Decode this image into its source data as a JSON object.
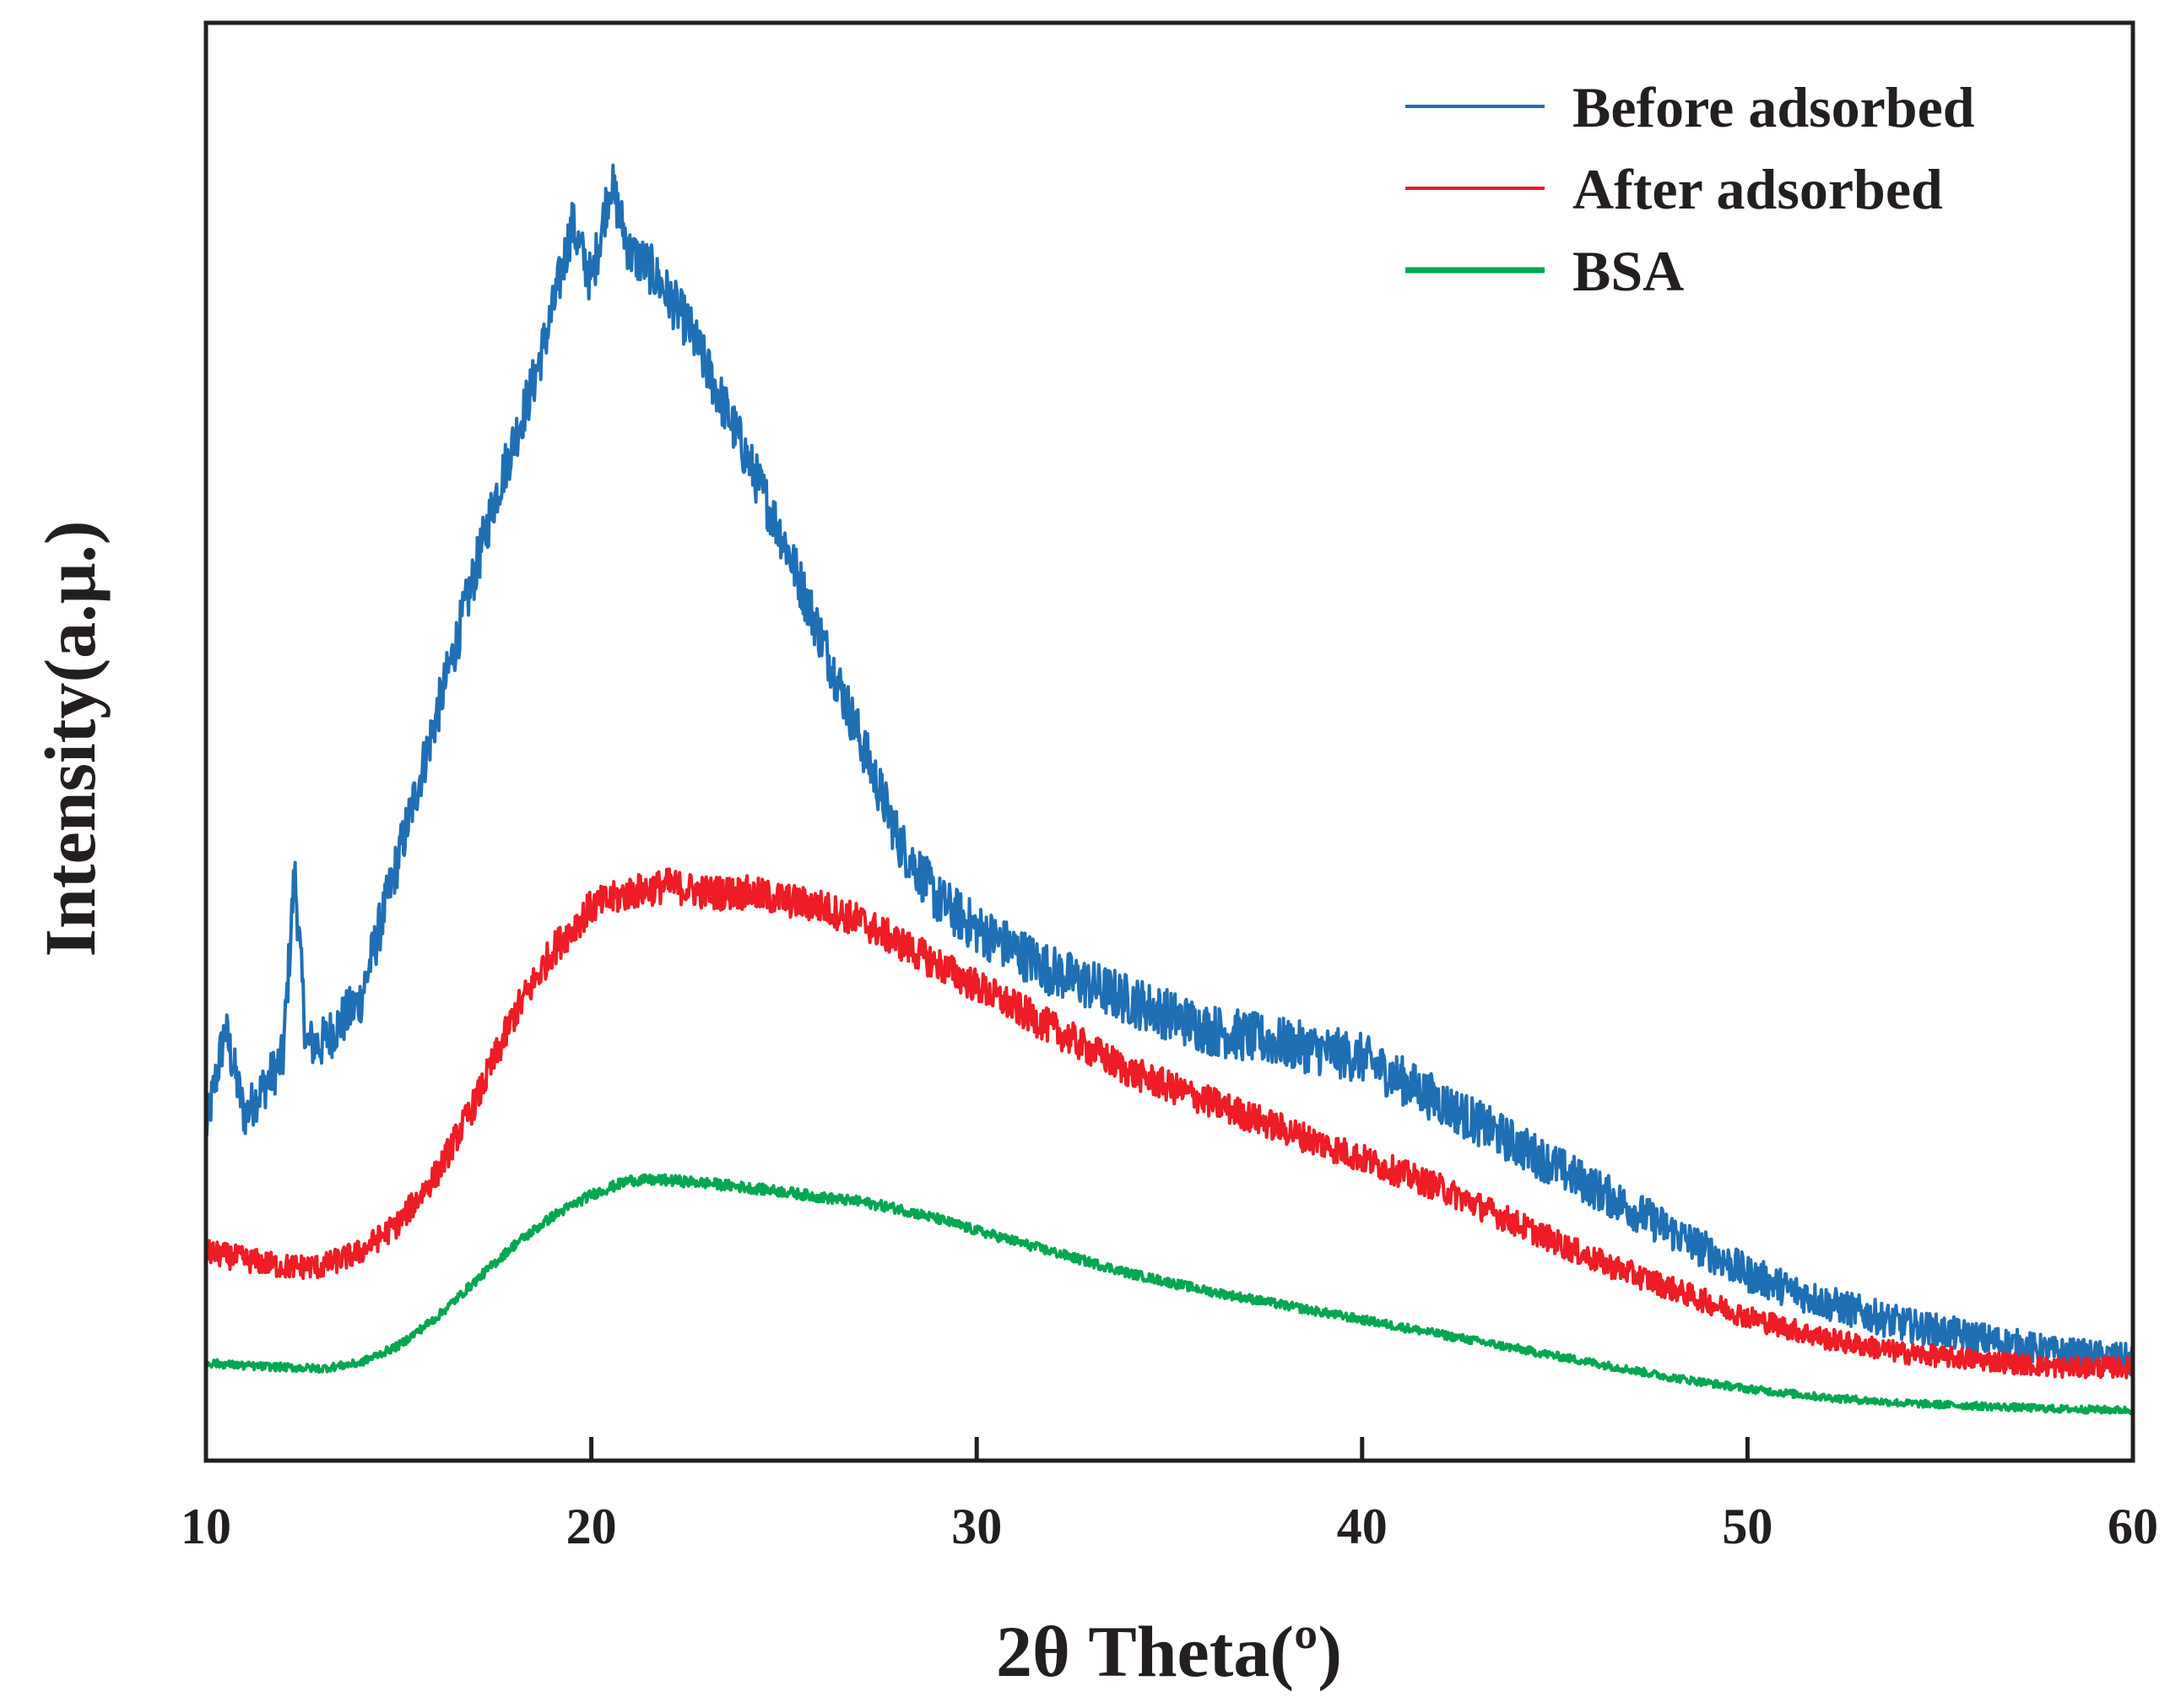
{
  "chart_data": {
    "type": "line",
    "title": "",
    "xlabel": "2θ Theta(º)",
    "ylabel": "Intensity(a.μ.)",
    "xlim": [
      10,
      60
    ],
    "ylim": [
      0,
      100
    ],
    "x_ticks": [
      10,
      20,
      30,
      40,
      50,
      60
    ],
    "x_tick_labels": [
      "10",
      "20",
      "30",
      "40",
      "50",
      "60"
    ],
    "y_ticks_shown": false,
    "grid": false,
    "legend_position": "top-right",
    "series": [
      {
        "name": "Before adsorbed",
        "color": "#1f6fb5",
        "noise": 1.8,
        "x": [
          10,
          10.5,
          11,
          11.5,
          12,
          12.3,
          12.6,
          13,
          14,
          15,
          16,
          17,
          17.5,
          18,
          18.5,
          19,
          19.5,
          20,
          20.5,
          21,
          21.5,
          22,
          22.5,
          23,
          24,
          25,
          26,
          27,
          28,
          29,
          30,
          32,
          34,
          36,
          38,
          40,
          42,
          44,
          46,
          48,
          50,
          52,
          54,
          56,
          58,
          60
        ],
        "values": [
          23,
          30,
          24,
          26,
          28,
          41,
          29,
          29,
          32,
          42,
          52,
          62,
          67,
          71,
          75,
          80,
          86,
          82,
          89,
          84,
          83,
          81,
          79,
          76,
          70,
          64,
          57,
          50,
          43,
          39,
          37,
          34,
          32,
          30,
          29,
          28,
          25,
          22,
          19,
          16,
          13,
          11,
          9.5,
          8.5,
          7.5,
          7
        ]
      },
      {
        "name": "After adsorbed",
        "color": "#ee1c25",
        "noise": 1.2,
        "x": [
          10,
          11,
          12,
          13,
          14,
          15,
          16,
          17,
          18,
          19,
          20,
          21,
          22,
          23,
          24,
          25,
          26,
          27,
          28,
          29,
          30,
          32,
          34,
          36,
          38,
          40,
          42,
          44,
          46,
          48,
          50,
          52,
          54,
          56,
          58,
          60
        ],
        "values": [
          14.5,
          14,
          13.5,
          13.5,
          14.5,
          16.5,
          20,
          25,
          31,
          35.5,
          38.5,
          39.5,
          40,
          39.5,
          39.5,
          39,
          38.5,
          37.5,
          36,
          34.5,
          33,
          30,
          27,
          25,
          23,
          21,
          19,
          16.5,
          14,
          12,
          10,
          8.5,
          7.5,
          7,
          6.5,
          6.5
        ]
      },
      {
        "name": "BSA",
        "color": "#00a651",
        "noise": 0.45,
        "x": [
          10,
          11,
          12,
          13,
          14,
          15,
          16,
          17,
          18,
          19,
          20,
          21,
          22,
          23,
          24,
          25,
          26,
          27,
          28,
          29,
          30,
          32,
          34,
          36,
          38,
          40,
          42,
          44,
          46,
          48,
          50,
          52,
          54,
          56,
          58,
          60
        ],
        "values": [
          6.8,
          6.6,
          6.5,
          6.4,
          6.8,
          8,
          10,
          12.5,
          15,
          17,
          18.5,
          19.5,
          19.5,
          19.3,
          19,
          18.7,
          18.3,
          18,
          17.5,
          16.8,
          16,
          14.5,
          13,
          11.8,
          10.8,
          9.8,
          8.8,
          7.8,
          6.8,
          5.8,
          5,
          4.4,
          4,
          3.8,
          3.6,
          3.5
        ]
      }
    ]
  }
}
